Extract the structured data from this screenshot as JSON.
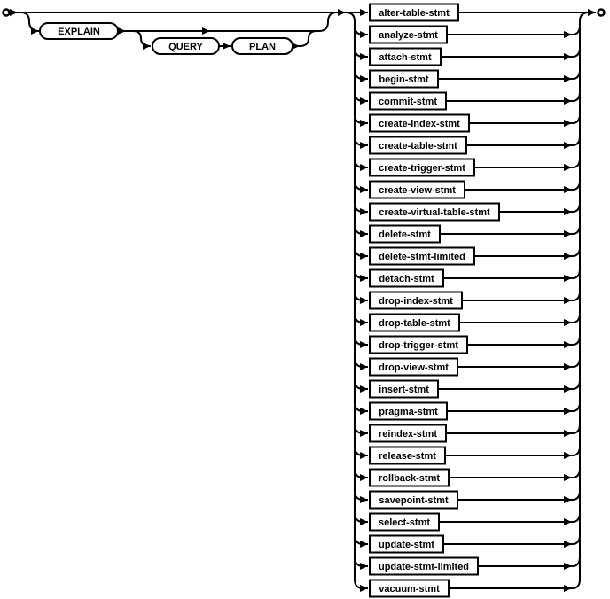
{
  "diagram": {
    "kind": "railroad-syntax-diagram",
    "rule_name": "sql-stmt",
    "colors": {
      "line": "#000000",
      "background": "#ffffff",
      "box_fill": "#ffffff",
      "text": "#000000"
    },
    "terminals": {
      "start": "start-terminal-circle",
      "end": "end-terminal-circle"
    },
    "keywords": [
      "EXPLAIN",
      "QUERY",
      "PLAN"
    ],
    "statements": [
      "alter-table-stmt",
      "analyze-stmt",
      "attach-stmt",
      "begin-stmt",
      "commit-stmt",
      "create-index-stmt",
      "create-table-stmt",
      "create-trigger-stmt",
      "create-view-stmt",
      "create-virtual-table-stmt",
      "delete-stmt",
      "delete-stmt-limited",
      "detach-stmt",
      "drop-index-stmt",
      "drop-table-stmt",
      "drop-trigger-stmt",
      "drop-view-stmt",
      "insert-stmt",
      "pragma-stmt",
      "reindex-stmt",
      "release-stmt",
      "rollback-stmt",
      "savepoint-stmt",
      "select-stmt",
      "update-stmt",
      "update-stmt-limited",
      "vacuum-stmt"
    ]
  }
}
